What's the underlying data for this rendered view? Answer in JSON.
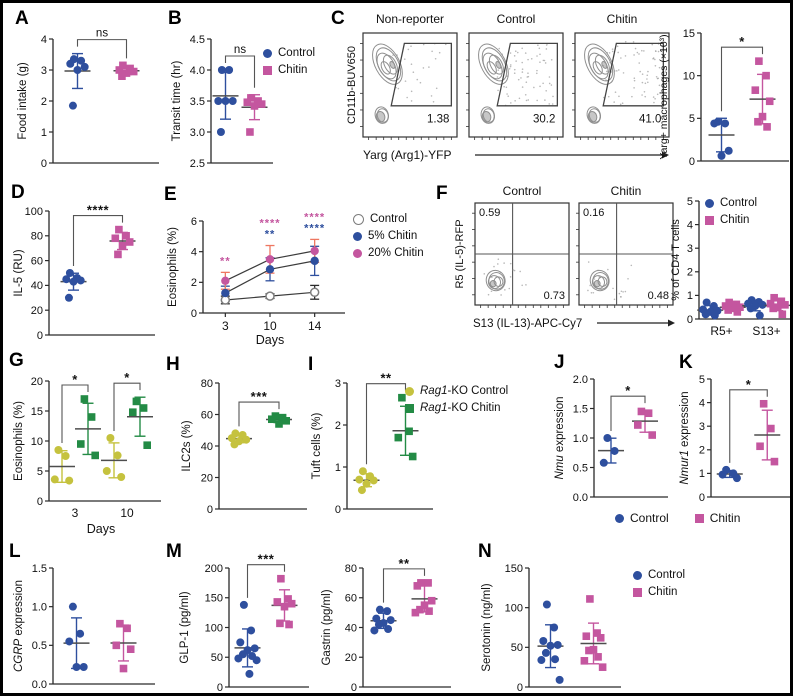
{
  "letters": {
    "A": "A",
    "B": "B",
    "C": "C",
    "D": "D",
    "E": "E",
    "F": "F",
    "G": "G",
    "H": "H",
    "I": "I",
    "J": "J",
    "K": "K",
    "L": "L",
    "M": "M",
    "N": "N"
  },
  "colors": {
    "blue": "#2e4f9e",
    "pink": "#c4569f",
    "yellow": "#c5c23e",
    "green": "#238b45",
    "gray": "#7d7d7d",
    "red_err": "#ee7761",
    "axis": "#2a2a2a"
  },
  "legends": {
    "control": "Control",
    "chitin": "Chitin",
    "e_control": "Control",
    "e_five": "5% Chitin",
    "e_twenty": "20% Chitin",
    "rag_prefix": "Rag1",
    "rag_control_suffix": "-KO Control",
    "rag_chitin_suffix": "-KO Chitin"
  },
  "chart_data": [
    {
      "id": "A",
      "type": "scatter",
      "ylabel": "Food intake (g)",
      "ylim": [
        0,
        4
      ],
      "yticks": [
        0,
        1,
        2,
        3,
        4
      ],
      "ydec": 0,
      "ml": 44,
      "slots": 2,
      "groups": [
        {
          "label": "Control",
          "color": "blue",
          "marker": "circle",
          "slot": 0,
          "values": [
            3.35,
            3.3,
            3.2,
            3.1,
            3.0,
            1.85
          ]
        },
        {
          "label": "Chitin",
          "color": "pink",
          "marker": "square",
          "slot": 1,
          "values": [
            3.15,
            3.05,
            3.0,
            2.95,
            2.9,
            2.8
          ]
        }
      ],
      "sig": [
        {
          "a": 0,
          "b": 1,
          "label": "ns"
        }
      ]
    },
    {
      "id": "B",
      "type": "scatter",
      "ylabel": "Transit time (hr)",
      "ylim": [
        2.5,
        4.5
      ],
      "yticks": [
        2.5,
        3.0,
        3.5,
        4.0,
        4.5
      ],
      "ydec": 1,
      "ml": 48,
      "mr": 6,
      "slots": 2,
      "groups": [
        {
          "label": "Control",
          "color": "blue",
          "marker": "circle",
          "slot": 0,
          "values": [
            4.0,
            4.0,
            3.5,
            3.5,
            3.5,
            3.0
          ]
        },
        {
          "label": "Chitin",
          "color": "pink",
          "marker": "square",
          "slot": 1,
          "values": [
            3.55,
            3.5,
            3.48,
            3.45,
            3.42,
            3.0
          ]
        }
      ],
      "sig": [
        {
          "a": 0,
          "b": 1,
          "label": "ns"
        }
      ]
    },
    {
      "id": "C_flow",
      "type": "flow_gate",
      "ylabel": "CD11b-BUV650",
      "xlabel": "Yarg (Arg1)-YFP",
      "titles": [
        "Non-reporter",
        "Control",
        "Chitin"
      ],
      "values": [
        "1.38",
        "30.2",
        "41.0"
      ]
    },
    {
      "id": "C_scatter",
      "type": "scatter",
      "ylabel": "Yarg+ macrophages (×10³)",
      "ylfs": 10.5,
      "ylx": 12,
      "ylim": [
        0,
        15
      ],
      "yticks": [
        0,
        5,
        10,
        15
      ],
      "ydec": 0,
      "ml": 50,
      "mr": 8,
      "mt": 18,
      "slots": 2,
      "groups": [
        {
          "label": "Control",
          "color": "blue",
          "marker": "circle",
          "slot": 0,
          "values": [
            4.6,
            4.4,
            4.4,
            1.2,
            0.6
          ]
        },
        {
          "label": "Chitin",
          "color": "pink",
          "marker": "square",
          "slot": 1,
          "values": [
            11.7,
            10.0,
            8.3,
            7.0,
            5.2,
            4.6,
            4.0
          ]
        }
      ],
      "sig": [
        {
          "a": 0,
          "b": 1,
          "label": "*"
        }
      ]
    },
    {
      "id": "D",
      "type": "scatter",
      "ylabel": "IL-5 (RU)",
      "ylim": [
        0,
        100
      ],
      "yticks": [
        0,
        20,
        40,
        60,
        80,
        100
      ],
      "ydec": 0,
      "ml": 44,
      "slots": 2,
      "groups": [
        {
          "label": "Control",
          "color": "blue",
          "marker": "circle",
          "slot": 0,
          "values": [
            50,
            46,
            45,
            44,
            43,
            30
          ]
        },
        {
          "label": "Chitin",
          "color": "pink",
          "marker": "square",
          "slot": 1,
          "values": [
            85,
            80,
            78,
            75,
            72,
            65
          ]
        }
      ],
      "sig": [
        {
          "a": 0,
          "b": 1,
          "label": "****"
        }
      ]
    },
    {
      "id": "E",
      "type": "line",
      "ylabel": "Eosinophils (%)",
      "xlabel": "Days",
      "x": [
        "3",
        "10",
        "14"
      ],
      "ylim": [
        0,
        6
      ],
      "yticks": [
        0,
        2,
        4,
        6
      ],
      "ydec": 0,
      "ml": 44,
      "series": [
        {
          "name": "Control",
          "color": "gray",
          "open": true,
          "err_color": "axis",
          "values": [
            0.85,
            1.1,
            1.35
          ],
          "err": [
            0.25,
            0.15,
            0.45
          ]
        },
        {
          "name": "5% Chitin",
          "color": "blue",
          "values": [
            1.3,
            2.85,
            3.4
          ],
          "err": [
            0.45,
            0.75,
            0.95
          ]
        },
        {
          "name": "20% Chitin",
          "color": "pink",
          "err_color": "red_err",
          "values": [
            2.1,
            3.5,
            4.05
          ],
          "err": [
            0.55,
            0.9,
            0.75
          ]
        }
      ],
      "annotations": [
        {
          "xi": 0,
          "lines": [
            {
              "text": "**",
              "color": "pink"
            }
          ]
        },
        {
          "xi": 1,
          "lines": [
            {
              "text": "****",
              "color": "pink"
            },
            {
              "text": "**",
              "color": "blue"
            }
          ]
        },
        {
          "xi": 2,
          "lines": [
            {
              "text": "****",
              "color": "pink"
            },
            {
              "text": "****",
              "color": "blue"
            }
          ]
        }
      ]
    },
    {
      "id": "F_flow",
      "type": "flow_quad",
      "ylabel": "R5 (IL-5)-RFP",
      "xlabel": "S13 (IL-13)-APC-Cy7",
      "titles": [
        "Control",
        "Chitin"
      ],
      "quad_tl": [
        "0.59",
        "0.16"
      ],
      "quad_br": [
        "0.73",
        "0.48"
      ]
    },
    {
      "id": "F_scatter",
      "type": "scatter",
      "ylabel": "% of CD4 T cells",
      "ylfs": 11,
      "ylx": 12,
      "ylim": [
        0,
        5
      ],
      "yticks": [
        0,
        1,
        2,
        3,
        4,
        5
      ],
      "ydec": 0,
      "ml": 36,
      "mr": 6,
      "mt": 14,
      "slots": 4,
      "xcats": [
        {
          "label": "R5+",
          "slots": [
            0,
            1
          ]
        },
        {
          "label": "S13+",
          "slots": [
            2,
            3
          ]
        }
      ],
      "groups": [
        {
          "label": "Control",
          "color": "blue",
          "marker": "circle",
          "slot": 0,
          "values": [
            0.7,
            0.55,
            0.4,
            0.35,
            0.3,
            0.2,
            0.15
          ]
        },
        {
          "label": "Chitin",
          "color": "pink",
          "marker": "square",
          "slot": 1,
          "values": [
            0.7,
            0.62,
            0.55,
            0.5,
            0.45,
            0.38,
            0.3
          ]
        },
        {
          "label": "Control",
          "color": "blue",
          "marker": "circle",
          "slot": 2,
          "values": [
            0.8,
            0.72,
            0.65,
            0.6,
            0.55,
            0.45,
            0.15
          ]
        },
        {
          "label": "Chitin",
          "color": "pink",
          "marker": "square",
          "slot": 3,
          "values": [
            0.9,
            0.75,
            0.65,
            0.6,
            0.5,
            0.45,
            0.2
          ]
        }
      ]
    },
    {
      "id": "G",
      "type": "scatter",
      "ylabel": "Eosinophils (%)",
      "xlabel": "Days",
      "ylim": [
        0,
        20
      ],
      "yticks": [
        0,
        5,
        10,
        15,
        20
      ],
      "ydec": 0,
      "ml": 44,
      "slots": 4,
      "xcats": [
        {
          "label": "3",
          "slots": [
            0,
            1
          ]
        },
        {
          "label": "10",
          "slots": [
            2,
            3
          ]
        }
      ],
      "groups": [
        {
          "label": "Rag1-KO Control",
          "color": "yellow",
          "marker": "circle",
          "slot": 0,
          "values": [
            8.5,
            7.5,
            3.6,
            3.4
          ]
        },
        {
          "label": "Rag1-KO Chitin",
          "color": "green",
          "marker": "square",
          "slot": 1,
          "values": [
            17.0,
            14.0,
            9.5,
            7.6
          ]
        },
        {
          "label": "Rag1-KO Control",
          "color": "yellow",
          "marker": "circle",
          "slot": 2,
          "values": [
            10.5,
            7.6,
            5.0,
            4.0
          ]
        },
        {
          "label": "Rag1-KO Chitin",
          "color": "green",
          "marker": "square",
          "slot": 3,
          "values": [
            16.6,
            15.5,
            14.8,
            9.3
          ]
        }
      ],
      "sig": [
        {
          "a": 0,
          "b": 1,
          "label": "*"
        },
        {
          "a": 2,
          "b": 3,
          "label": "*"
        }
      ]
    },
    {
      "id": "H",
      "type": "scatter",
      "ylabel": "ILC2s (%)",
      "ylim": [
        0,
        80
      ],
      "yticks": [
        0,
        20,
        40,
        60,
        80
      ],
      "ydec": 0,
      "ml": 46,
      "slots": 2,
      "groups": [
        {
          "label": "Rag1-KO Control",
          "color": "yellow",
          "marker": "circle",
          "slot": 0,
          "values": [
            48,
            47,
            45,
            44,
            43,
            41
          ]
        },
        {
          "label": "Rag1-KO Chitin",
          "color": "green",
          "marker": "square",
          "slot": 1,
          "values": [
            59,
            58,
            57,
            56,
            54
          ]
        }
      ],
      "sig": [
        {
          "a": 0,
          "b": 1,
          "label": "***"
        }
      ]
    },
    {
      "id": "I",
      "type": "scatter",
      "ylabel": "Tuft cells (%)",
      "ylim": [
        0,
        3
      ],
      "yticks": [
        0,
        1,
        2,
        3
      ],
      "ydec": 0,
      "ml": 44,
      "slots": 2,
      "groups": [
        {
          "label": "Rag1-KO Control",
          "color": "yellow",
          "marker": "circle",
          "slot": 0,
          "values": [
            0.9,
            0.78,
            0.7,
            0.68,
            0.6,
            0.45
          ]
        },
        {
          "label": "Rag1-KO Chitin",
          "color": "green",
          "marker": "square",
          "slot": 1,
          "values": [
            2.65,
            1.85,
            1.7,
            1.25
          ]
        }
      ],
      "sig": [
        {
          "a": 0,
          "b": 1,
          "label": "**"
        }
      ]
    },
    {
      "id": "J",
      "type": "scatter",
      "ylabel_italic": "Nmu",
      "ylabel": "expression",
      "ylim": [
        0,
        2
      ],
      "yticks": [
        0,
        0.5,
        1.0,
        1.5,
        2.0
      ],
      "ydec": 1,
      "ml": 48,
      "mr": 8,
      "slots": 2,
      "groups": [
        {
          "label": "Control",
          "color": "blue",
          "marker": "circle",
          "slot": 0,
          "values": [
            1.0,
            0.78,
            0.58
          ]
        },
        {
          "label": "Chitin",
          "color": "pink",
          "marker": "square",
          "slot": 1,
          "values": [
            1.45,
            1.42,
            1.22,
            1.05
          ]
        }
      ],
      "sig": [
        {
          "a": 0,
          "b": 1,
          "label": "*"
        }
      ]
    },
    {
      "id": "K",
      "type": "scatter",
      "ylabel_italic": "Nmur1",
      "ylabel": "expression",
      "ylim": [
        0,
        5
      ],
      "yticks": [
        0,
        1,
        2,
        3,
        4,
        5
      ],
      "ydec": 0,
      "ml": 40,
      "mr": 8,
      "slots": 2,
      "groups": [
        {
          "label": "Control",
          "color": "blue",
          "marker": "circle",
          "slot": 0,
          "values": [
            1.15,
            1.0,
            0.95,
            0.8
          ]
        },
        {
          "label": "Chitin",
          "color": "pink",
          "marker": "square",
          "slot": 1,
          "values": [
            3.95,
            2.9,
            2.15,
            1.5
          ]
        }
      ],
      "sig": [
        {
          "a": 0,
          "b": 1,
          "label": "*"
        }
      ]
    },
    {
      "id": "L",
      "type": "scatter",
      "ylabel_italic": "CGRP",
      "ylabel": "expression",
      "ylim": [
        0,
        1.5
      ],
      "yticks": [
        0,
        0.5,
        1.0,
        1.5
      ],
      "ydec": 1,
      "ml": 48,
      "slots": 2,
      "groups": [
        {
          "label": "Control",
          "color": "blue",
          "marker": "circle",
          "slot": 0,
          "values": [
            1.0,
            0.65,
            0.55,
            0.22,
            0.22
          ]
        },
        {
          "label": "Chitin",
          "color": "pink",
          "marker": "square",
          "slot": 1,
          "values": [
            0.78,
            0.72,
            0.5,
            0.45,
            0.2
          ]
        }
      ]
    },
    {
      "id": "M_glp1",
      "type": "scatter",
      "ylabel": "GLP-1 (pg/ml)",
      "ylim": [
        0,
        200
      ],
      "yticks": [
        0,
        50,
        100,
        150,
        200
      ],
      "ydec": 0,
      "ml": 58,
      "mr": 8,
      "slots": 2,
      "groups": [
        {
          "label": "Control",
          "color": "blue",
          "marker": "circle",
          "slot": 0,
          "values": [
            138,
            95,
            75,
            65,
            62,
            55,
            52,
            48,
            45,
            22
          ]
        },
        {
          "label": "Chitin",
          "color": "pink",
          "marker": "square",
          "slot": 1,
          "values": [
            182,
            148,
            143,
            140,
            135,
            107,
            105
          ]
        }
      ],
      "sig": [
        {
          "a": 0,
          "b": 1,
          "label": "***"
        }
      ]
    },
    {
      "id": "M_gastrin",
      "type": "scatter",
      "ylabel": "Gastrin (pg/ml)",
      "ylim": [
        0,
        80
      ],
      "yticks": [
        0,
        20,
        40,
        60,
        80
      ],
      "ydec": 0,
      "ml": 50,
      "mr": 8,
      "slots": 2,
      "groups": [
        {
          "label": "Control",
          "color": "blue",
          "marker": "circle",
          "slot": 0,
          "values": [
            52,
            51,
            46,
            45,
            43,
            42,
            39,
            38
          ]
        },
        {
          "label": "Chitin",
          "color": "pink",
          "marker": "square",
          "slot": 1,
          "values": [
            70,
            70,
            68,
            58,
            55,
            52,
            51,
            50
          ]
        }
      ],
      "sig": [
        {
          "a": 0,
          "b": 1,
          "label": "**"
        }
      ]
    },
    {
      "id": "N",
      "type": "scatter",
      "ylabel": "Serotonin (ng/ml)",
      "ylim": [
        0,
        150
      ],
      "yticks": [
        0,
        50,
        100,
        150
      ],
      "ydec": 0,
      "ml": 56,
      "mr": 8,
      "slots": 2,
      "groups": [
        {
          "label": "Control",
          "color": "blue",
          "marker": "circle",
          "slot": 0,
          "values": [
            104,
            75,
            58,
            53,
            52,
            43,
            35,
            34,
            9
          ]
        },
        {
          "label": "Chitin",
          "color": "pink",
          "marker": "square",
          "slot": 1,
          "values": [
            111,
            68,
            64,
            62,
            47,
            46,
            38,
            33,
            25
          ]
        }
      ]
    }
  ]
}
